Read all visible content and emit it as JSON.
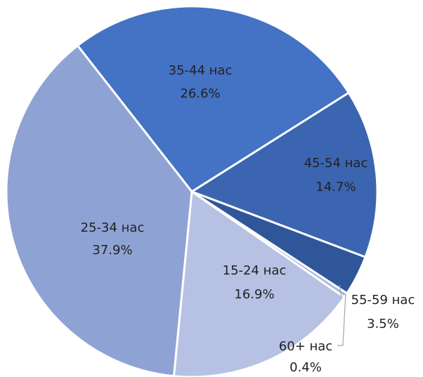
{
  "chart_data": {
    "type": "pie",
    "categories": [
      "35-44 нас",
      "45-54 нас",
      "55-59 нас",
      "60+ нас",
      "15-24 нас",
      "25-34 нас"
    ],
    "values": [
      26.6,
      14.7,
      3.5,
      0.4,
      16.9,
      37.9
    ],
    "value_labels": [
      "26.6%",
      "14.7%",
      "3.5%",
      "0.4%",
      "16.9%",
      "37.9%"
    ],
    "colors": [
      "#4472c4",
      "#3b65b0",
      "#30569a",
      "#a9b8dc",
      "#b6c1e3",
      "#8fa2d4"
    ]
  }
}
